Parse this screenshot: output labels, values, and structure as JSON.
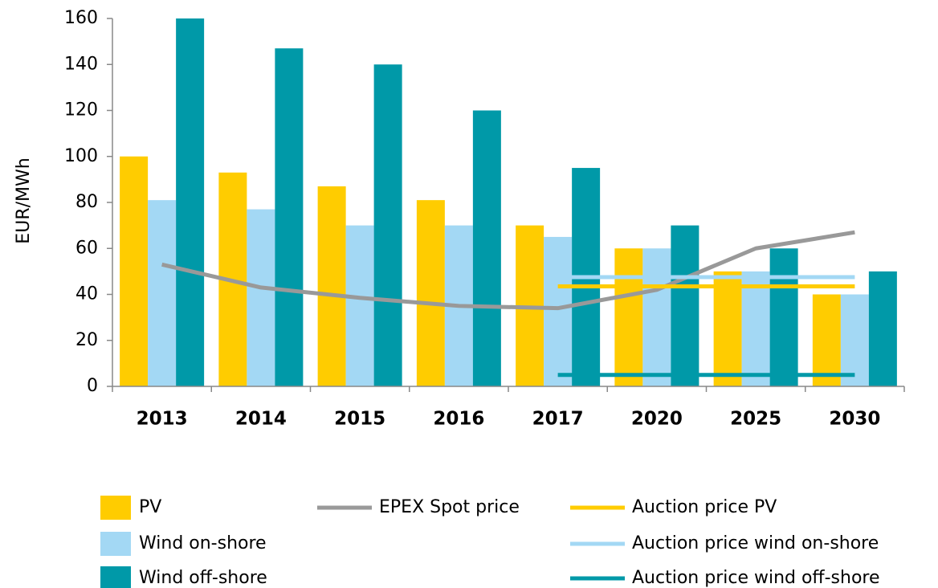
{
  "chart_data": {
    "type": "bar",
    "y_label": "EUR/MWh",
    "categories": [
      "2013",
      "2014",
      "2015",
      "2016",
      "2017",
      "2020",
      "2025",
      "2030"
    ],
    "series": [
      {
        "name": "PV",
        "type": "bar",
        "color": "#ffcc00",
        "values": [
          100,
          93,
          87,
          81,
          70,
          60,
          50,
          40
        ]
      },
      {
        "name": "Wind on-shore",
        "type": "bar",
        "color": "#a3d8f4",
        "values": [
          81,
          77,
          70,
          70,
          65,
          60,
          50,
          40
        ]
      },
      {
        "name": "Wind off-shore",
        "type": "bar",
        "color": "#0099a8",
        "values": [
          160,
          147,
          140,
          120,
          95,
          70,
          60,
          50
        ]
      },
      {
        "name": "EPEX Spot price",
        "type": "line",
        "color": "#999999",
        "values": [
          53,
          43,
          38.5,
          35,
          34,
          42,
          60,
          67
        ]
      },
      {
        "name": "Auction price PV",
        "type": "line",
        "color": "#ffcc00",
        "values": [
          null,
          null,
          null,
          null,
          43.5,
          43.5,
          43.5,
          43.5
        ]
      },
      {
        "name": "Auction price wind on-shore",
        "type": "line",
        "color": "#a3d8f4",
        "values": [
          null,
          null,
          null,
          null,
          47.5,
          47.5,
          47.5,
          47.5
        ]
      },
      {
        "name": "Auction price wind off-shore",
        "type": "line",
        "color": "#0099a8",
        "values": [
          null,
          null,
          null,
          null,
          5,
          5,
          5,
          5
        ]
      }
    ],
    "ylim": [
      0,
      160
    ],
    "yticks": [
      0,
      20,
      40,
      60,
      80,
      100,
      120,
      140,
      160
    ],
    "grid": false
  }
}
